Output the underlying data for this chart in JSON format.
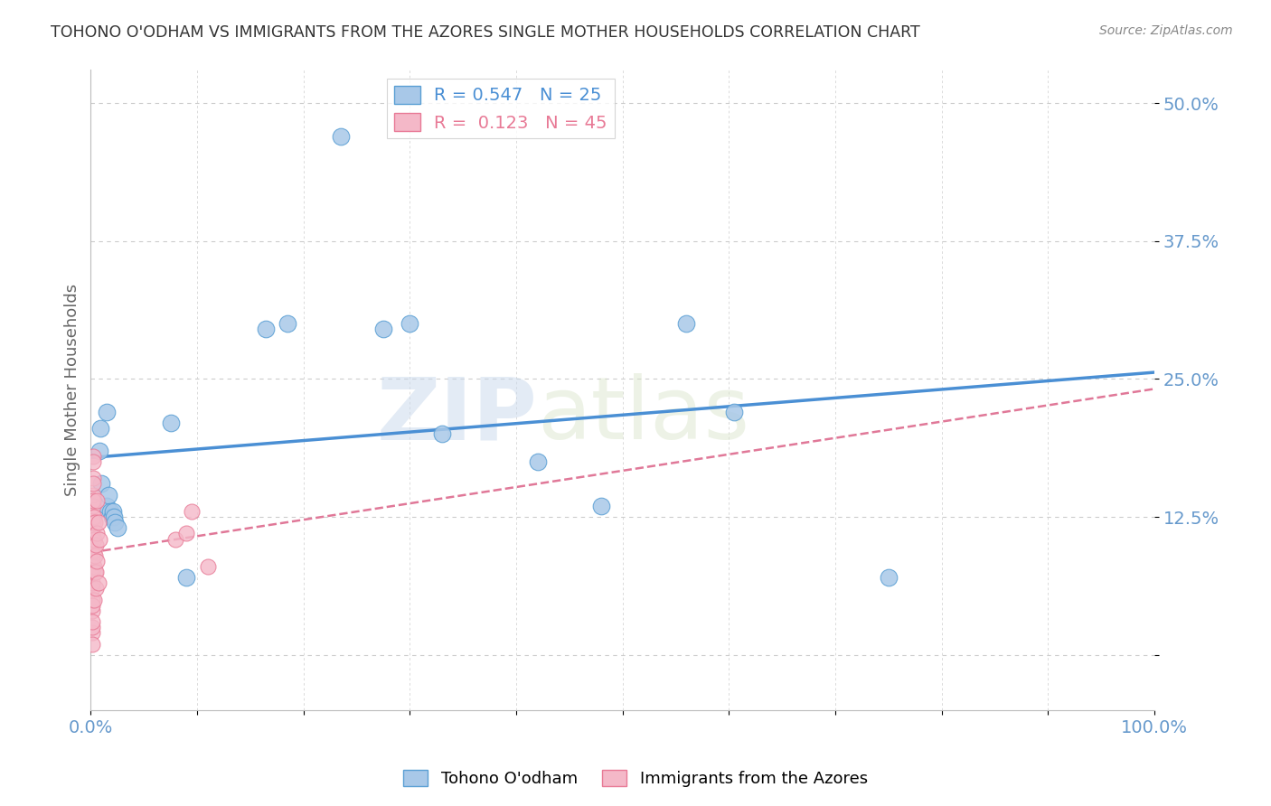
{
  "title": "TOHONO O'ODHAM VS IMMIGRANTS FROM THE AZORES SINGLE MOTHER HOUSEHOLDS CORRELATION CHART",
  "source": "Source: ZipAtlas.com",
  "ylabel": "Single Mother Households",
  "xlim": [
    0,
    1.0
  ],
  "ylim": [
    -0.05,
    0.53
  ],
  "yticks": [
    0.0,
    0.125,
    0.25,
    0.375,
    0.5
  ],
  "ytick_labels": [
    "",
    "12.5%",
    "25.0%",
    "37.5%",
    "50.0%"
  ],
  "xtick_labels": [
    "0.0%",
    "",
    "",
    "",
    "",
    "",
    "",
    "",
    "",
    "",
    "100.0%"
  ],
  "blue_label": "Tohono O'odham",
  "pink_label": "Immigrants from the Azores",
  "blue_R": 0.547,
  "blue_N": 25,
  "pink_R": 0.123,
  "pink_N": 45,
  "blue_color": "#a8c8e8",
  "pink_color": "#f4b8c8",
  "blue_edge_color": "#5a9fd4",
  "pink_edge_color": "#e87a96",
  "blue_line_color": "#4a8fd4",
  "pink_line_color": "#e07898",
  "background_color": "#ffffff",
  "grid_color": "#cccccc",
  "title_color": "#333333",
  "axis_label_color": "#666666",
  "tick_label_color": "#6699cc",
  "blue_dots": [
    [
      0.008,
      0.185
    ],
    [
      0.009,
      0.205
    ],
    [
      0.01,
      0.155
    ],
    [
      0.015,
      0.22
    ],
    [
      0.015,
      0.135
    ],
    [
      0.017,
      0.145
    ],
    [
      0.018,
      0.13
    ],
    [
      0.02,
      0.125
    ],
    [
      0.021,
      0.13
    ],
    [
      0.022,
      0.125
    ],
    [
      0.023,
      0.12
    ],
    [
      0.025,
      0.115
    ],
    [
      0.075,
      0.21
    ],
    [
      0.09,
      0.07
    ],
    [
      0.165,
      0.295
    ],
    [
      0.185,
      0.3
    ],
    [
      0.235,
      0.47
    ],
    [
      0.275,
      0.295
    ],
    [
      0.3,
      0.3
    ],
    [
      0.33,
      0.2
    ],
    [
      0.42,
      0.175
    ],
    [
      0.48,
      0.135
    ],
    [
      0.56,
      0.3
    ],
    [
      0.605,
      0.22
    ],
    [
      0.75,
      0.07
    ]
  ],
  "pink_dots": [
    [
      0.001,
      0.02
    ],
    [
      0.001,
      0.04
    ],
    [
      0.001,
      0.06
    ],
    [
      0.001,
      0.08
    ],
    [
      0.0012,
      0.01
    ],
    [
      0.0012,
      0.025
    ],
    [
      0.0012,
      0.05
    ],
    [
      0.0012,
      0.065
    ],
    [
      0.0012,
      0.085
    ],
    [
      0.0012,
      0.105
    ],
    [
      0.0015,
      0.03
    ],
    [
      0.0015,
      0.045
    ],
    [
      0.0015,
      0.075
    ],
    [
      0.0015,
      0.09
    ],
    [
      0.0015,
      0.11
    ],
    [
      0.002,
      0.125
    ],
    [
      0.002,
      0.145
    ],
    [
      0.002,
      0.16
    ],
    [
      0.002,
      0.18
    ],
    [
      0.0022,
      0.12
    ],
    [
      0.0022,
      0.135
    ],
    [
      0.0022,
      0.155
    ],
    [
      0.0025,
      0.14
    ],
    [
      0.0025,
      0.175
    ],
    [
      0.003,
      0.05
    ],
    [
      0.003,
      0.08
    ],
    [
      0.003,
      0.125
    ],
    [
      0.0035,
      0.095
    ],
    [
      0.0035,
      0.105
    ],
    [
      0.004,
      0.075
    ],
    [
      0.004,
      0.09
    ],
    [
      0.004,
      0.12
    ],
    [
      0.005,
      0.1
    ],
    [
      0.005,
      0.075
    ],
    [
      0.005,
      0.06
    ],
    [
      0.006,
      0.11
    ],
    [
      0.006,
      0.14
    ],
    [
      0.006,
      0.085
    ],
    [
      0.007,
      0.12
    ],
    [
      0.007,
      0.065
    ],
    [
      0.008,
      0.105
    ],
    [
      0.08,
      0.105
    ],
    [
      0.09,
      0.11
    ],
    [
      0.095,
      0.13
    ],
    [
      0.11,
      0.08
    ]
  ]
}
